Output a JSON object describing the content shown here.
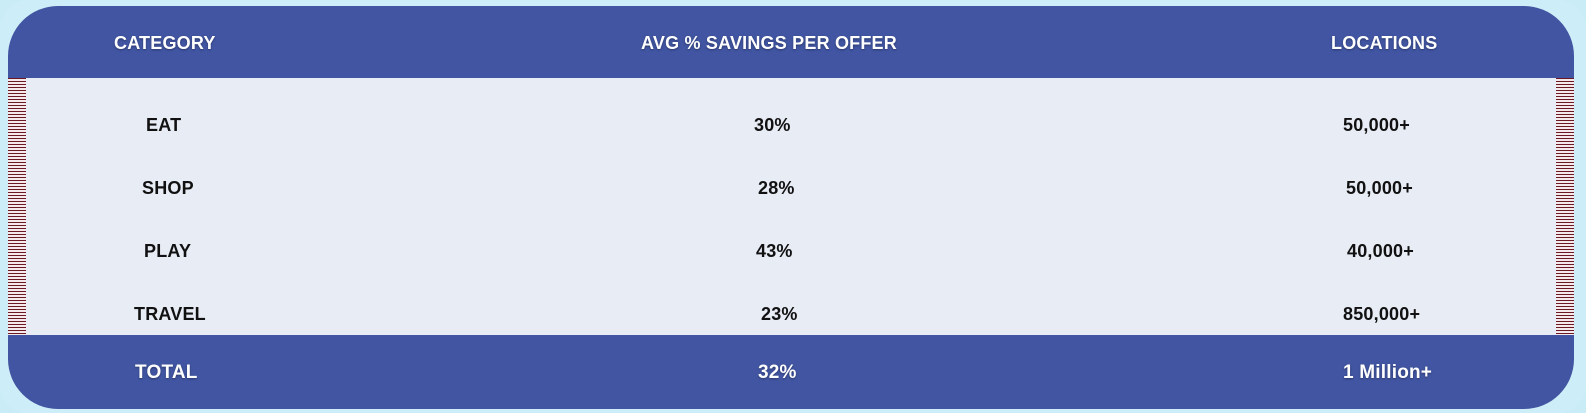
{
  "colors": {
    "header_bg": "#4155a2",
    "body_bg": "#e8ecf5",
    "page_bg": "#cdeef8",
    "stripe": "#6b1a24"
  },
  "header": {
    "category": "CATEGORY",
    "savings": "AVG % SAVINGS PER OFFER",
    "locations": "LOCATIONS"
  },
  "rows": [
    {
      "category": "EAT",
      "savings": "30%",
      "locations": "50,000+"
    },
    {
      "category": "SHOP",
      "savings": "28%",
      "locations": "50,000+"
    },
    {
      "category": "PLAY",
      "savings": "43%",
      "locations": "40,000+"
    },
    {
      "category": "TRAVEL",
      "savings": "23%",
      "locations": "850,000+"
    }
  ],
  "total": {
    "category": "TOTAL",
    "savings": "32%",
    "locations": "1 Million+"
  }
}
